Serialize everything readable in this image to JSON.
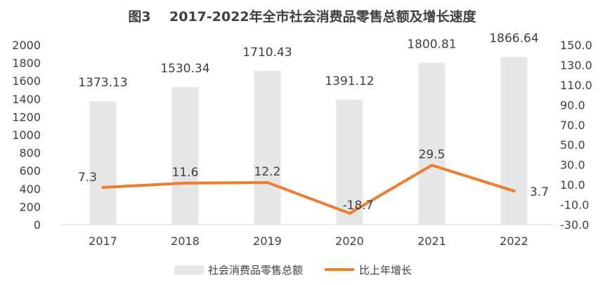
{
  "chart_data": {
    "type": "bar+line",
    "title": "图3    2017-2022年全市社会消费品零售总额及增长速度",
    "categories": [
      "2017",
      "2018",
      "2019",
      "2020",
      "2021",
      "2022"
    ],
    "series": [
      {
        "name": "社会消费品零售总额",
        "type": "bar",
        "axis": "left",
        "color": "#e6e6e6",
        "values": [
          1373.13,
          1530.34,
          1710.43,
          1391.12,
          1800.81,
          1866.64
        ],
        "labels": [
          "1373.13",
          "1530.34",
          "1710.43",
          "1391.12",
          "1800.81",
          "1866.64"
        ]
      },
      {
        "name": "比上年增长",
        "type": "line",
        "axis": "right",
        "color": "#ed7d31",
        "values": [
          7.3,
          11.6,
          12.2,
          -18.7,
          29.5,
          3.7
        ],
        "labels": [
          "7.3",
          "11.6",
          "12.2",
          "-18.7",
          "29.5",
          "3.7"
        ]
      }
    ],
    "y_left": {
      "min": 0,
      "max": 2000,
      "ticks": [
        "0",
        "200",
        "400",
        "600",
        "800",
        "1000",
        "1200",
        "1400",
        "1600",
        "1800",
        "2000"
      ]
    },
    "y_right": {
      "min": -30,
      "max": 150,
      "ticks": [
        "-30.0",
        "-10.0",
        "10.0",
        "30.0",
        "50.0",
        "70.0",
        "90.0",
        "110.0",
        "130.0",
        "150.0"
      ]
    },
    "grid": false,
    "legend": "bottom"
  }
}
